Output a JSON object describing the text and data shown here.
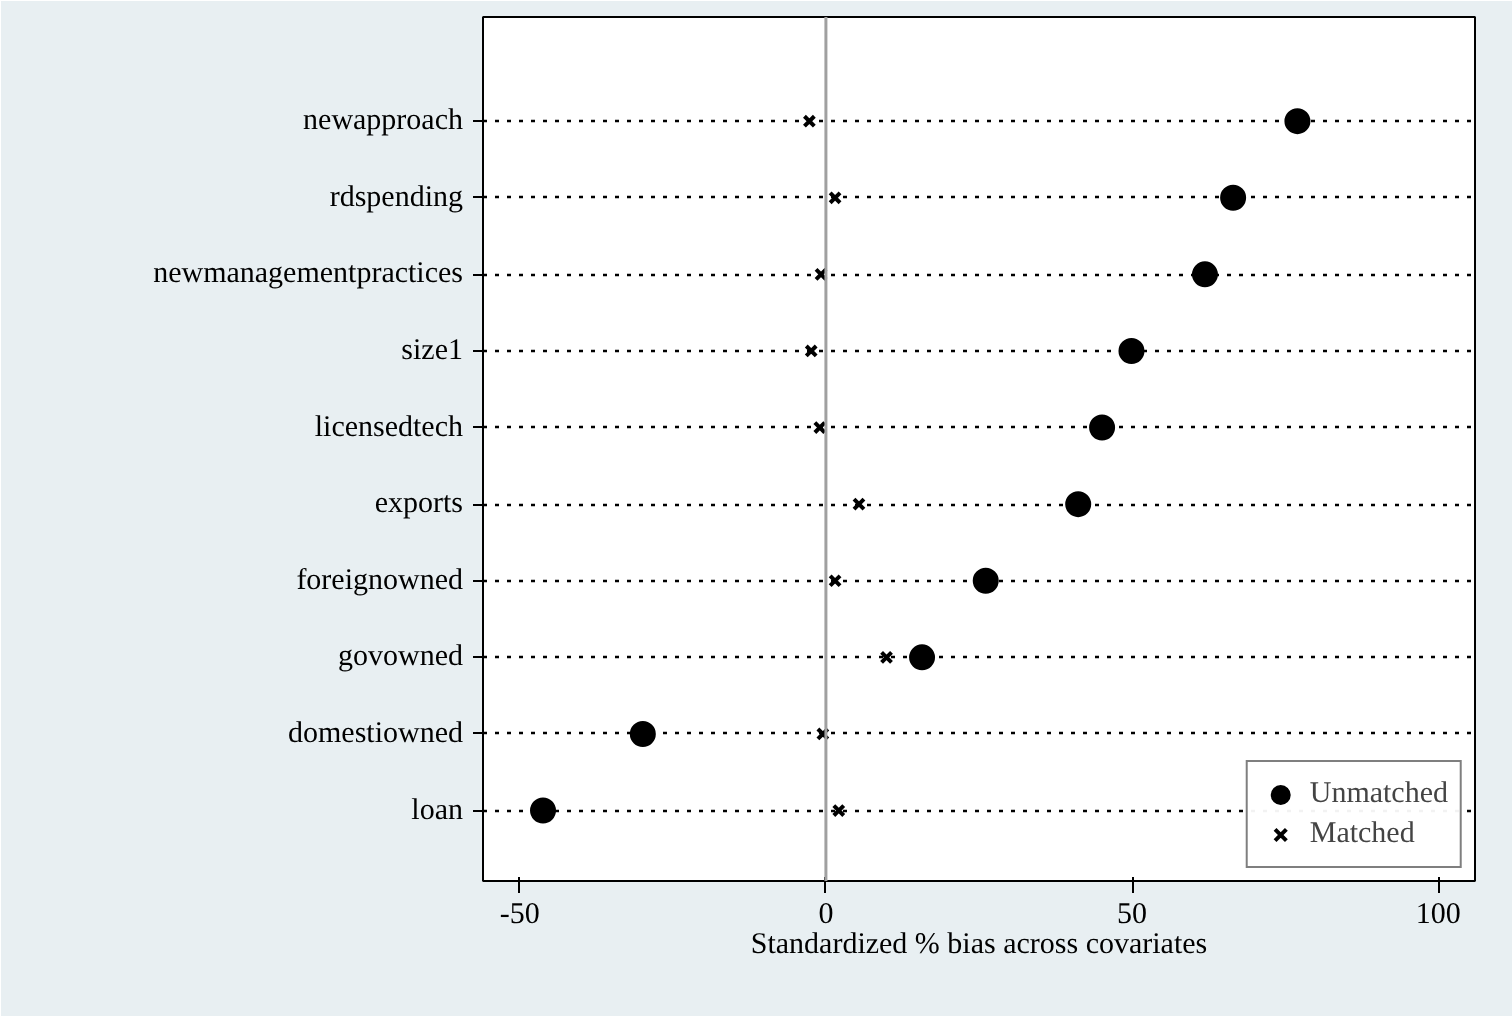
{
  "chart_data": {
    "type": "scatter",
    "xlabel": "Standardized % bias across covariates",
    "categories": [
      "newapproach",
      "rdspending",
      "newmanagementpractices",
      "size1",
      "licensedtech",
      "exports",
      "foreignowned",
      "govowned",
      "domestiowned",
      "loan"
    ],
    "orientation": "horizontal",
    "series": [
      {
        "name": "Unmatched",
        "color": "#000000",
        "marker": "circle",
        "values": [
          77.0,
          66.5,
          61.9,
          49.9,
          45.1,
          41.2,
          26.1,
          15.7,
          -29.9,
          -46.2
        ]
      },
      {
        "name": "Matched",
        "color": "#000000",
        "marker": "cross",
        "values": [
          -2.7,
          1.5,
          -0.8,
          -2.4,
          -1.0,
          5.4,
          1.5,
          9.9,
          -0.5,
          2.1
        ]
      }
    ],
    "xlim": [
      -56,
      106
    ],
    "xticks": [
      -50,
      0,
      50,
      100
    ],
    "ref_lines": [
      {
        "axis": "x",
        "value": 0,
        "color": "#a0a0a0"
      }
    ],
    "grid": "y",
    "line_style": "dotted",
    "legend": "bottom right"
  }
}
